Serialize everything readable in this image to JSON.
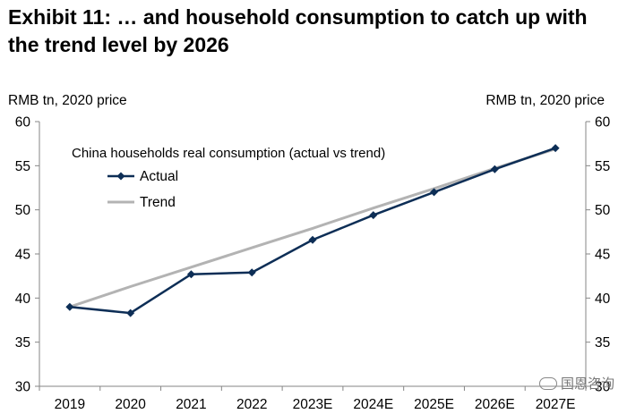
{
  "title": "Exhibit 11: … and household consumption to catch up with the trend level by 2026",
  "left_axis_unit": "RMB tn, 2020 price",
  "right_axis_unit": "RMB tn, 2020 price",
  "watermark": "国恩咨询",
  "colors": {
    "actual": "#0d2e56",
    "trend": "#b3b3b3",
    "axis": "#868686"
  },
  "chart_data": {
    "type": "line",
    "title": "China households real consumption (actual vs trend)",
    "categories": [
      "2019",
      "2020",
      "2021",
      "2022",
      "2023E",
      "2024E",
      "2025E",
      "2026E",
      "2027E"
    ],
    "series": [
      {
        "name": "Actual",
        "values": [
          39.0,
          38.3,
          42.7,
          42.9,
          46.6,
          49.4,
          52.0,
          54.6,
          57.0
        ]
      },
      {
        "name": "Trend",
        "values": [
          39.0,
          41.3,
          43.5,
          45.7,
          47.9,
          50.2,
          52.4,
          54.7,
          56.9
        ]
      }
    ],
    "ylim": [
      30,
      60
    ],
    "yticks": [
      30,
      35,
      40,
      45,
      50,
      55,
      60
    ],
    "legend_position": "top-left"
  }
}
